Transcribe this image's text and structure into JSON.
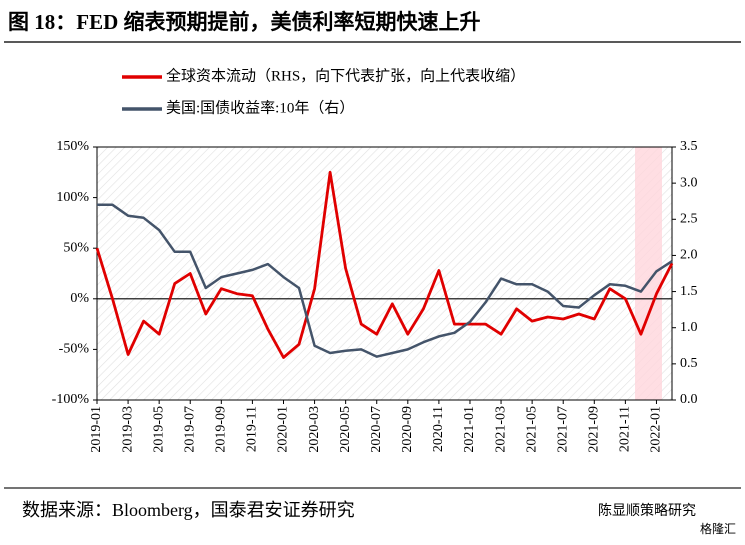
{
  "chart_data": {
    "type": "line",
    "title": "图 18：FED 缩表预期提前，美债利率短期快速上升",
    "source": "数据来源：Bloomberg，国泰君安证券研究",
    "watermark": [
      "陈显顺策略研究",
      "格隆汇"
    ],
    "categories": [
      "2019-01",
      null,
      "2019-03",
      null,
      "2019-05",
      null,
      "2019-07",
      null,
      "2019-09",
      null,
      "2019-11",
      null,
      "2020-01",
      null,
      "2020-03",
      null,
      "2020-05",
      null,
      "2020-07",
      null,
      "2020-09",
      null,
      "2020-11",
      null,
      "2021-01",
      null,
      "2021-03",
      null,
      "2021-05",
      null,
      "2021-07",
      null,
      "2021-09",
      null,
      "2021-11",
      null,
      "2022-01",
      null
    ],
    "series": [
      {
        "name": "全球资本流动（RHS，向下代表扩张，向上代表收缩）",
        "color": "#e00000",
        "values": [
          50,
          0,
          -55,
          -22,
          -35,
          15,
          25,
          -15,
          10,
          5,
          3,
          -30,
          -58,
          -45,
          10,
          125,
          30,
          -25,
          -35,
          -5,
          -35,
          -10,
          28,
          -25,
          -25,
          -25,
          -35,
          -10,
          -22,
          -18,
          -20,
          -15,
          -20,
          10,
          0,
          -35,
          5,
          35
        ]
      },
      {
        "name": "美国:国债收益率:10年（右）",
        "color": "#44546a",
        "axis": "y2",
        "values": [
          2.7,
          2.7,
          2.55,
          2.52,
          2.35,
          2.05,
          2.05,
          1.55,
          1.7,
          1.75,
          1.8,
          1.88,
          1.7,
          1.55,
          0.75,
          0.65,
          0.68,
          0.7,
          0.6,
          0.65,
          0.7,
          0.8,
          0.88,
          0.93,
          1.08,
          1.35,
          1.68,
          1.6,
          1.6,
          1.5,
          1.3,
          1.28,
          1.45,
          1.6,
          1.58,
          1.5,
          1.78,
          1.92
        ]
      }
    ],
    "ylim": [
      -100,
      150
    ],
    "yticks": [
      {
        "value": -100,
        "label": "-100%"
      },
      {
        "value": -50,
        "label": "-50%"
      },
      {
        "value": 0,
        "label": "0%"
      },
      {
        "value": 50,
        "label": "50%"
      },
      {
        "value": 100,
        "label": "100%"
      },
      {
        "value": 150,
        "label": "150%"
      }
    ],
    "y2lim": [
      0,
      3.5
    ],
    "y2ticks": [
      {
        "value": 0,
        "label": "0.0"
      },
      0.5,
      {
        "value": 1,
        "label": "1.0"
      },
      1.5,
      {
        "value": 2,
        "label": "2.0"
      },
      2.5,
      {
        "value": 3,
        "label": "3.0"
      },
      3.5
    ],
    "legend": "top-left"
  }
}
